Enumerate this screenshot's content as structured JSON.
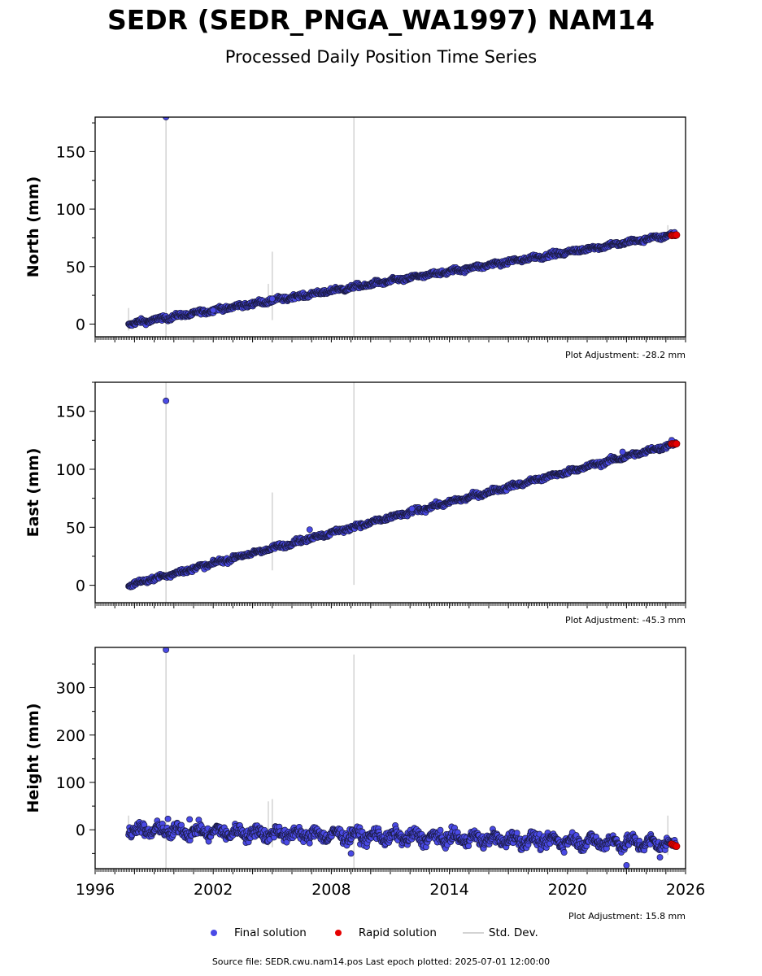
{
  "title": "SEDR (SEDR_PNGA_WA1997) NAM14",
  "subtitle": "Processed Daily Position Time Series",
  "legend": {
    "final_label": "Final solution",
    "rapid_label": "Rapid solution",
    "std_label": "Std. Dev."
  },
  "source_text": "Source file: SEDR.cwu.nam14.pos  Last epoch plotted: 2025-07-01 12:00:00",
  "colors": {
    "final": "#4a4ae6",
    "final_edge": "#1a1a40",
    "rapid": "#e60000",
    "std": "#d3d3d3"
  },
  "chart_data": [
    {
      "type": "scatter",
      "ylabel": "North (mm)",
      "adjustment": "Plot Adjustment: -28.2 mm",
      "xlim": [
        1996,
        2026
      ],
      "ylim": [
        -11,
        180
      ],
      "yticks": [
        0,
        50,
        100,
        150
      ],
      "xticks": [
        1996,
        2002,
        2008,
        2014,
        2020,
        2026
      ],
      "series": [
        {
          "trend": [
            [
              1997.7,
              0
            ],
            [
              2025.5,
              78
            ]
          ],
          "outliers": [
            [
              1999.6,
              180
            ],
            [
              2002.0,
              12
            ],
            [
              2005.0,
              22
            ]
          ]
        },
        {
          "trend": [
            [
              2025.3,
              77
            ],
            [
              2025.55,
              77.5
            ]
          ]
        }
      ],
      "std_dev_bars": [
        [
          1997.7,
          14
        ],
        [
          1999.6,
          180
        ],
        [
          2004.8,
          35
        ],
        [
          2005.0,
          63
        ],
        [
          2009.15,
          180
        ],
        [
          2025.1,
          86
        ]
      ]
    },
    {
      "type": "scatter",
      "ylabel": "East (mm)",
      "adjustment": "Plot Adjustment: -45.3 mm",
      "xlim": [
        1996,
        2026
      ],
      "ylim": [
        -15,
        175
      ],
      "yticks": [
        0,
        50,
        100,
        150
      ],
      "xticks": [
        1996,
        2002,
        2008,
        2014,
        2020,
        2026
      ],
      "series": [
        {
          "trend": [
            [
              1997.7,
              0
            ],
            [
              2025.5,
              122
            ]
          ],
          "outliers": [
            [
              1999.6,
              159
            ],
            [
              2006.9,
              48
            ],
            [
              2012.1,
              66
            ],
            [
              2022.8,
              115
            ],
            [
              2025.3,
              125
            ]
          ]
        },
        {
          "trend": [
            [
              2025.3,
              122
            ],
            [
              2025.55,
              122
            ]
          ]
        }
      ],
      "std_dev_bars": [
        [
          1999.6,
          175
        ],
        [
          2004.7,
          32
        ],
        [
          2005.0,
          80
        ],
        [
          2009.15,
          175
        ],
        [
          2025.2,
          128
        ]
      ]
    },
    {
      "type": "scatter",
      "ylabel": "Height (mm)",
      "adjustment": "Plot Adjustment: 15.8 mm",
      "xlim": [
        1996,
        2026
      ],
      "ylim": [
        -82,
        385
      ],
      "yticks": [
        0,
        100,
        200,
        300
      ],
      "xticks": [
        1996,
        2002,
        2008,
        2014,
        2020,
        2026
      ],
      "series": [
        {
          "trend": [
            [
              1997.7,
              0
            ],
            [
              2025.5,
              -30
            ]
          ],
          "outliers": [
            [
              1999.6,
              380
            ],
            [
              1999.7,
              23
            ],
            [
              2000.8,
              22
            ],
            [
              2009.0,
              -50
            ],
            [
              2023.0,
              -75
            ],
            [
              2024.7,
              -58
            ]
          ]
        },
        {
          "trend": [
            [
              2025.3,
              -30
            ],
            [
              2025.55,
              -35
            ]
          ]
        }
      ],
      "std_dev_bars": [
        [
          1997.7,
          30
        ],
        [
          1999.6,
          385
        ],
        [
          2004.8,
          60
        ],
        [
          2005.0,
          65
        ],
        [
          2009.15,
          370
        ],
        [
          2025.1,
          30
        ]
      ]
    }
  ]
}
